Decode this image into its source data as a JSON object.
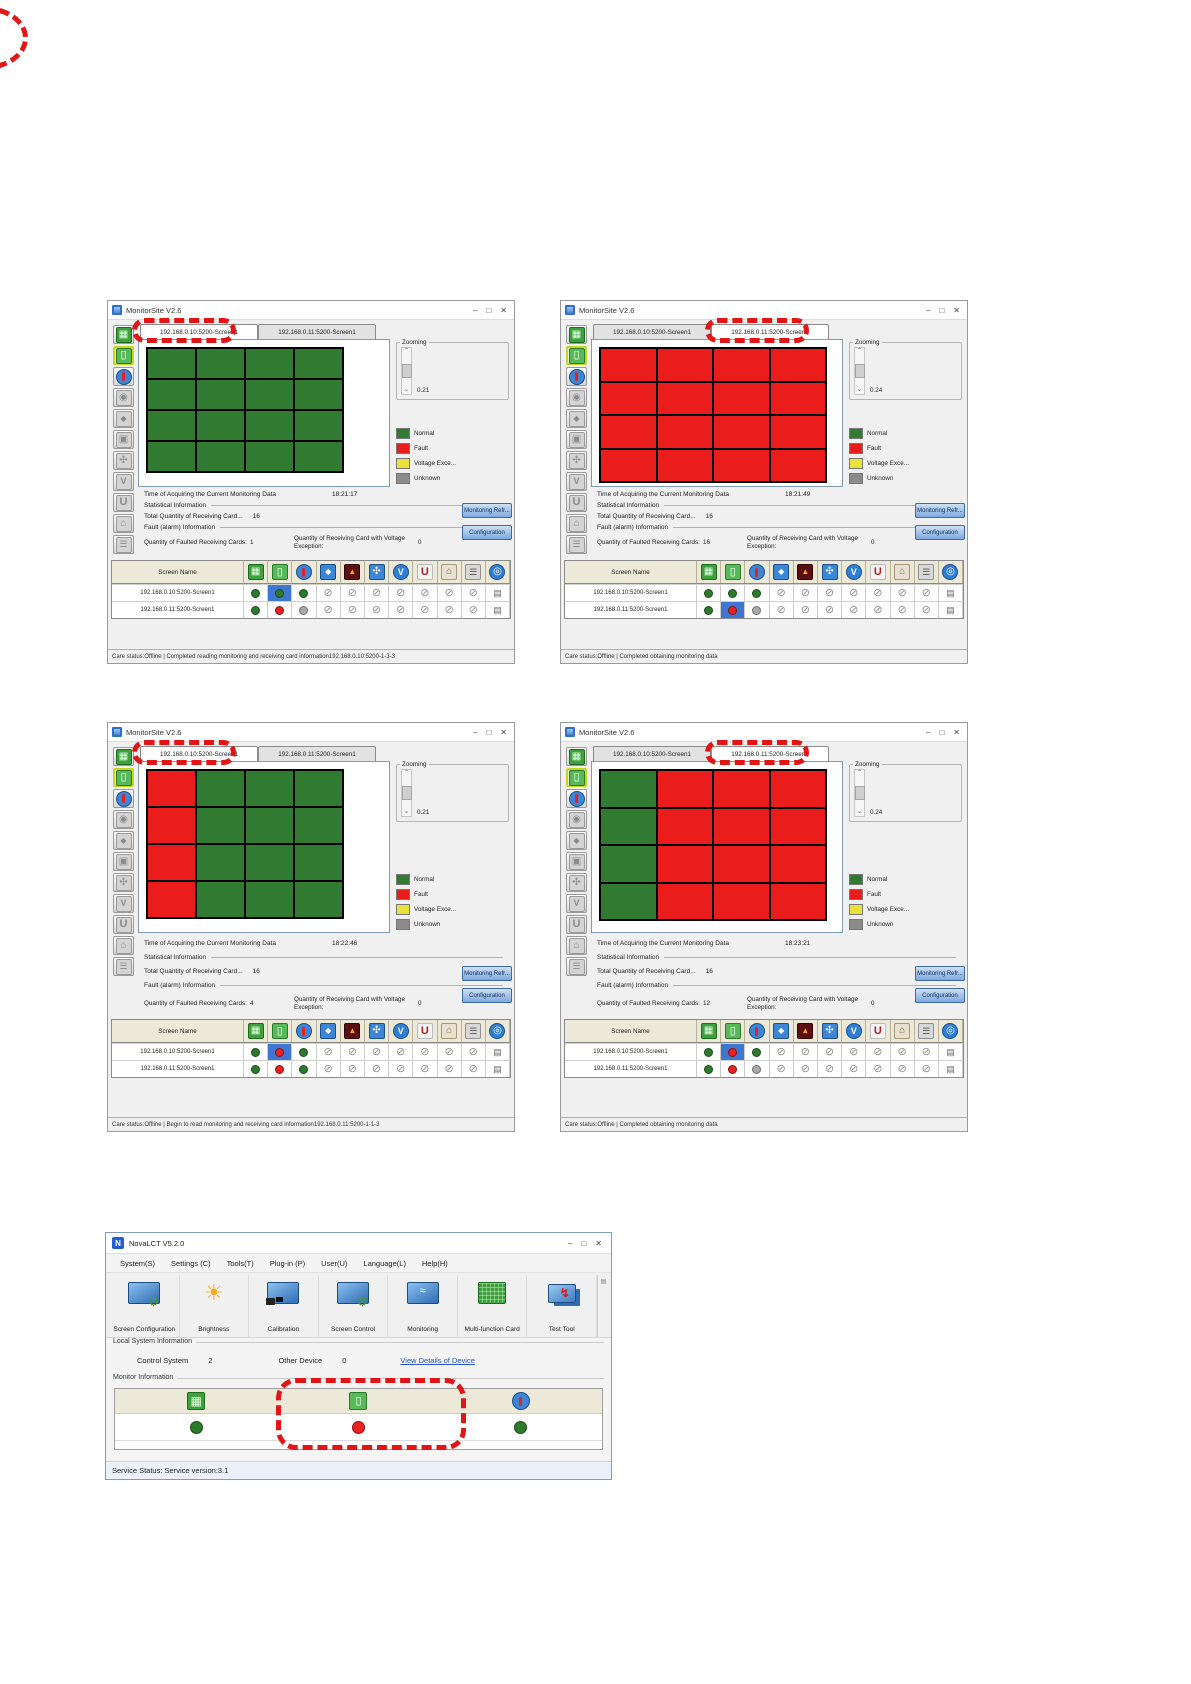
{
  "shared": {
    "window_title": "MonitorSite V2.6",
    "window_controls": {
      "minimize": "–",
      "maximize": "□",
      "close": "✕"
    },
    "tabs": [
      "192.168.0.10:5200-Screen1",
      "192.168.0.11:5200-Screen1"
    ],
    "zooming_label": "Zooming",
    "legend": [
      {
        "label": "Normal",
        "color": "#317a31"
      },
      {
        "label": "Fault",
        "color": "#ea1c1c"
      },
      {
        "label": "Voltage Exce...",
        "color": "#e8e23a"
      },
      {
        "label": "Unknown",
        "color": "#8c8c8c"
      }
    ],
    "labels": {
      "time": "Time of Acquiring the Current Monitoring Data",
      "statistical": "Statistical Information",
      "total": "Total Quantity of Receiving Card...",
      "fault_info": "Fault (alarm) Information",
      "faulted": "Quantity of Faulted Receiving Cards:",
      "voltage": "Quantity of Receiving Card with Voltage Exception:"
    },
    "buttons": {
      "monitoring": "Monitoring Refr...",
      "configuration": "Configuration"
    },
    "table": {
      "screen_name_header": "Screen Name"
    },
    "sidebar_icons": [
      {
        "name": "receiving-card",
        "icon": "pcb"
      },
      {
        "name": "monitoring-card",
        "icon": "card",
        "active": true
      },
      {
        "name": "temperature",
        "icon": "thermo"
      },
      {
        "name": "power-supply",
        "icon": "power",
        "gray": true
      },
      {
        "name": "humidity",
        "icon": "drop",
        "gray": true
      },
      {
        "name": "screen",
        "icon": "screen",
        "gray": true
      },
      {
        "name": "fan",
        "icon": "fan",
        "gray": true
      },
      {
        "name": "voltage",
        "icon": "volt",
        "gray": true
      },
      {
        "name": "cabinet-door",
        "icon": "ucab",
        "gray": true
      },
      {
        "name": "exit",
        "icon": "door",
        "gray": true
      },
      {
        "name": "cable",
        "icon": "cable",
        "gray": true
      }
    ],
    "table_icons": [
      {
        "name": "receiving-card",
        "icon": "pcb"
      },
      {
        "name": "monitoring-card",
        "icon": "card"
      },
      {
        "name": "temperature",
        "icon": "thermo"
      },
      {
        "name": "humidity",
        "icon": "hum"
      },
      {
        "name": "smoke",
        "icon": "smoke"
      },
      {
        "name": "fan",
        "icon": "fanb"
      },
      {
        "name": "voltage",
        "icon": "volt"
      },
      {
        "name": "cabinet-door",
        "icon": "ucab"
      },
      {
        "name": "exit",
        "icon": "door"
      },
      {
        "name": "cable",
        "icon": "cable"
      },
      {
        "name": "network",
        "icon": "globe"
      }
    ]
  },
  "windows": [
    {
      "time": "18:21:17",
      "total": "16",
      "faulted": "1",
      "voltage_exc": "0",
      "zoom_value": "0.21",
      "active_tab": 0,
      "circled_tab": 0,
      "grid": [
        "g",
        "g",
        "g",
        "g",
        "g",
        "g",
        "g",
        "g",
        "g",
        "g",
        "g",
        "g",
        "g",
        "g",
        "g",
        "g"
      ],
      "rows": [
        {
          "name": "192.168.0.10:5200-Screen1",
          "dots": [
            "g",
            "gsel",
            "g",
            "x",
            "x",
            "x",
            "x",
            "x",
            "x",
            "x",
            "prn"
          ]
        },
        {
          "name": "192.168.0.11:5200-Screen1",
          "dots": [
            "g",
            "r",
            "gray",
            "x",
            "x",
            "x",
            "x",
            "x",
            "x",
            "x",
            "prn"
          ]
        }
      ],
      "status": "Care status:Offline  |  Completed reading monitoring and receiving card information192.168.0.10:5200-1-3-3"
    },
    {
      "time": "18:21:49",
      "total": "16",
      "faulted": "16",
      "voltage_exc": "0",
      "zoom_value": "0.24",
      "active_tab": 1,
      "circled_tab": 1,
      "grid": [
        "r",
        "r",
        "r",
        "r",
        "r",
        "r",
        "r",
        "r",
        "r",
        "r",
        "r",
        "r",
        "r",
        "r",
        "r",
        "r"
      ],
      "rows": [
        {
          "name": "192.168.0.10:5200-Screen1",
          "dots": [
            "g",
            "g",
            "g",
            "x",
            "x",
            "x",
            "x",
            "x",
            "x",
            "x",
            "prn"
          ]
        },
        {
          "name": "192.168.0.11:5200-Screen1",
          "dots": [
            "g",
            "rsel",
            "gray",
            "x",
            "x",
            "x",
            "x",
            "x",
            "x",
            "x",
            "prn"
          ]
        }
      ],
      "status": "Care status:Offline  |  Completed obtaining monitoring data"
    },
    {
      "time": "18:22:46",
      "total": "16",
      "faulted": "4",
      "voltage_exc": "0",
      "zoom_value": "0.21",
      "active_tab": 0,
      "circled_tab": 0,
      "grid": [
        "r",
        "g",
        "g",
        "g",
        "r",
        "g",
        "g",
        "g",
        "r",
        "g",
        "g",
        "g",
        "r",
        "g",
        "g",
        "g"
      ],
      "rows": [
        {
          "name": "192.168.0.10:5200-Screen1",
          "dots": [
            "g",
            "rsel",
            "g",
            "x",
            "x",
            "x",
            "x",
            "x",
            "x",
            "x",
            "prn"
          ]
        },
        {
          "name": "192.168.0.11:5200-Screen1",
          "dots": [
            "g",
            "r",
            "g",
            "x",
            "x",
            "x",
            "x",
            "x",
            "x",
            "x",
            "prn"
          ]
        }
      ],
      "status": "Care status:Offline  |  Begin to read monitoring and receiving card information192.168.0.11:5200-1-1-3"
    },
    {
      "time": "18:23:21",
      "total": "16",
      "faulted": "12",
      "voltage_exc": "0",
      "zoom_value": "0.24",
      "active_tab": 1,
      "circled_tab": 1,
      "grid": [
        "g",
        "r",
        "r",
        "r",
        "g",
        "r",
        "r",
        "r",
        "g",
        "r",
        "r",
        "r",
        "g",
        "r",
        "r",
        "r"
      ],
      "rows": [
        {
          "name": "192.168.0.10:5200-Screen1",
          "dots": [
            "g",
            "rsel",
            "g",
            "x",
            "x",
            "x",
            "x",
            "x",
            "x",
            "x",
            "prn"
          ]
        },
        {
          "name": "192.168.0.11:5200-Screen1",
          "dots": [
            "g",
            "r",
            "gray",
            "x",
            "x",
            "x",
            "x",
            "x",
            "x",
            "x",
            "prn"
          ]
        }
      ],
      "status": "Care status:Offline  |  Completed obtaining monitoring data"
    }
  ],
  "novalct": {
    "title": "NovaLCT V5.2.0",
    "menus": [
      "System(S)",
      "Settings (C)",
      "Tools(T)",
      "Plug-in (P)",
      "User(U)",
      "Language(L)",
      "Help(H)"
    ],
    "toolbar": [
      {
        "name": "screen-configuration",
        "label": "Screen Configuration",
        "icon": "cfg"
      },
      {
        "name": "brightness",
        "label": "Brightness",
        "icon": "sun"
      },
      {
        "name": "calibration",
        "label": "Calibration",
        "icon": "cal"
      },
      {
        "name": "screen-control",
        "label": "Screen Control",
        "icon": "ctl"
      },
      {
        "name": "monitoring",
        "label": "Monitoring",
        "icon": "wave"
      },
      {
        "name": "multi-function-card",
        "label": "Multi-function Card",
        "icon": "mfc"
      },
      {
        "name": "test-tool",
        "label": "Test Tool",
        "icon": "test"
      }
    ],
    "local_system": {
      "label": "Local System Information",
      "control_system_label": "Control System",
      "control_system_value": "2",
      "other_device_label": "Other Device",
      "other_device_value": "0",
      "link": "View Details of Device"
    },
    "monitor_info": {
      "label": "Monitor Information",
      "items": [
        {
          "name": "screen-status",
          "icon": "pcb",
          "dot": "g"
        },
        {
          "name": "monitoring-status",
          "icon": "card",
          "dot": "r"
        },
        {
          "name": "temperature-status",
          "icon": "thermo",
          "dot": "g"
        }
      ]
    },
    "service_status": "Service Status:   Service version:3.1"
  }
}
